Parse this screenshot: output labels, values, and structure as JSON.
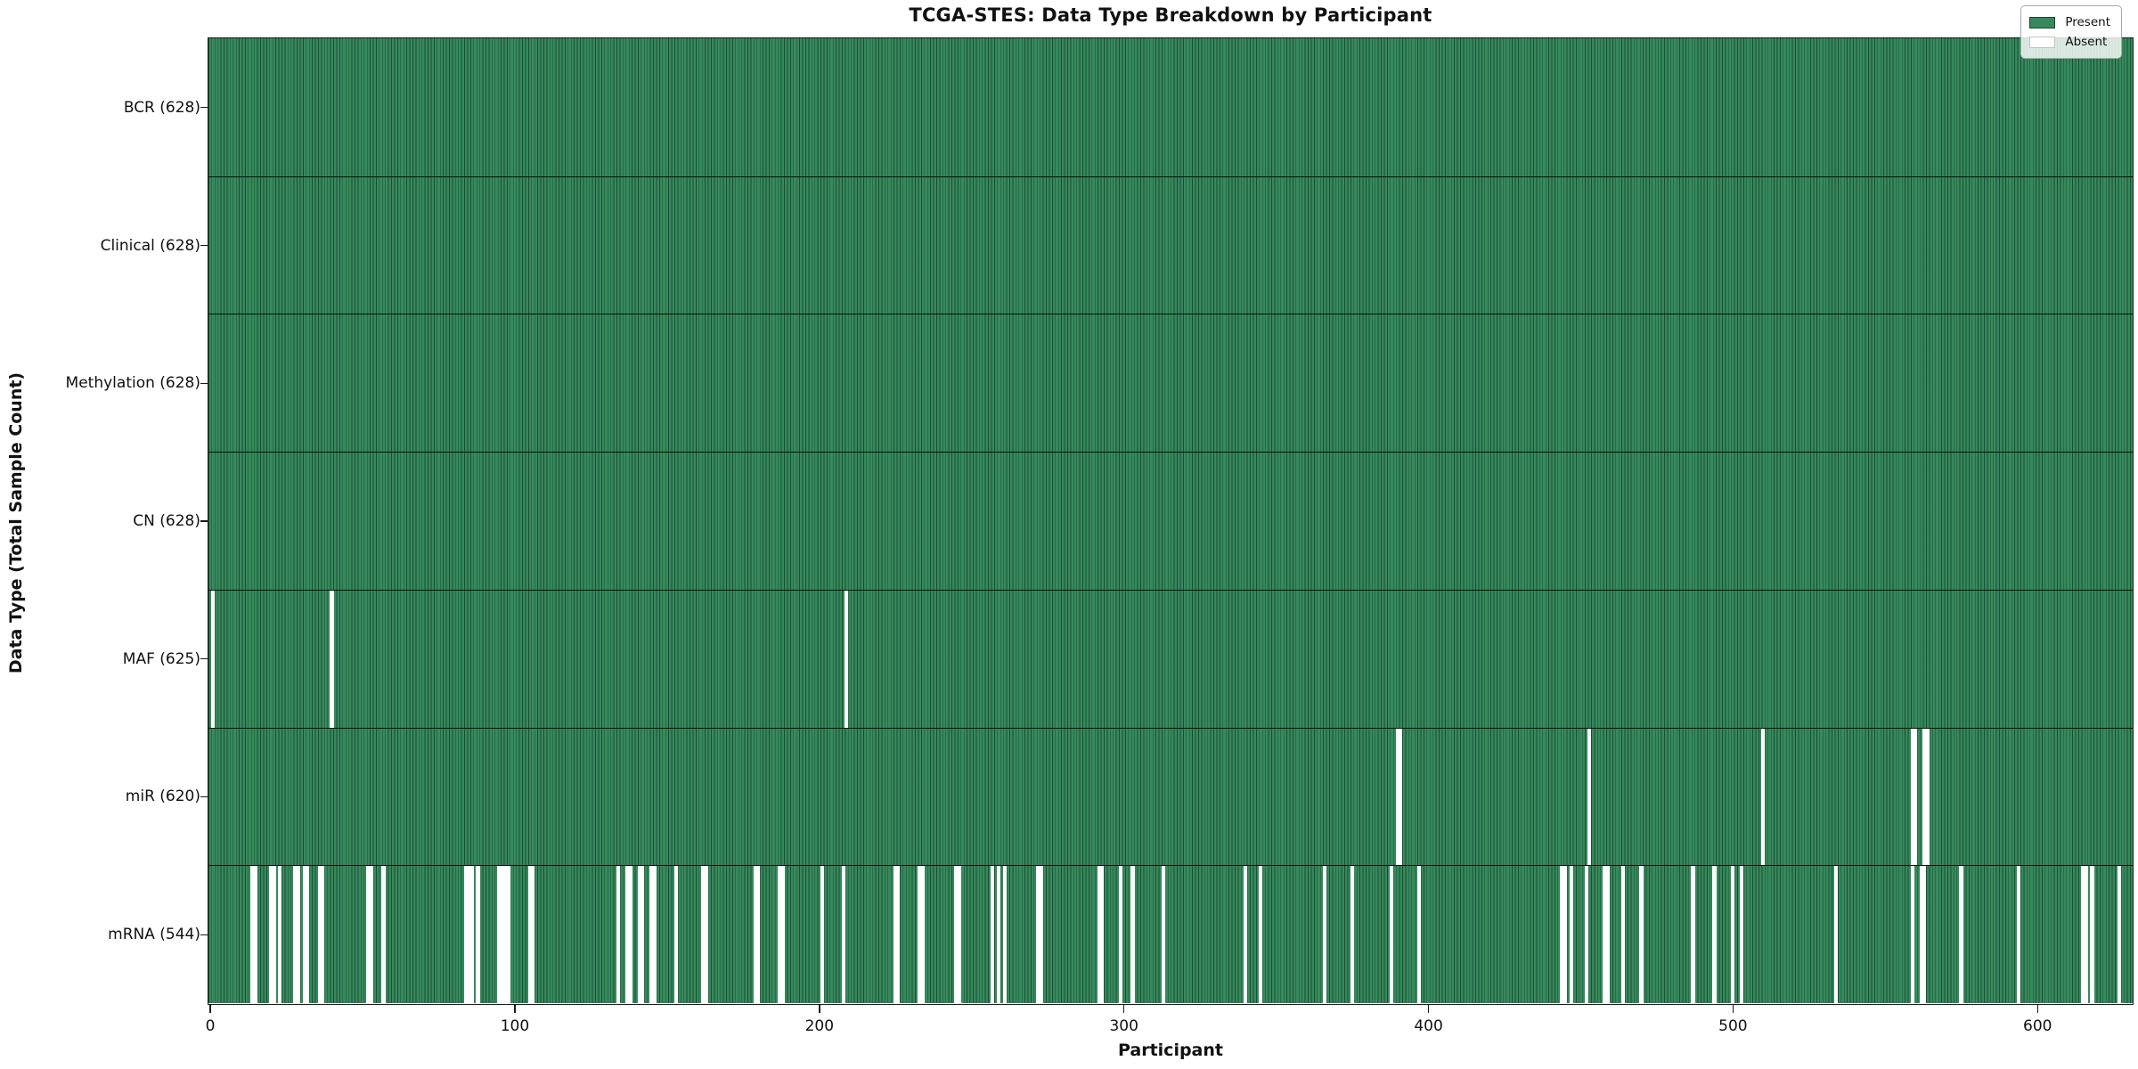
{
  "title": "TCGA-STES: Data Type Breakdown by Participant",
  "xlabel": "Participant",
  "ylabel": "Data Type (Total Sample Count)",
  "legend": {
    "present_label": "Present",
    "absent_label": "Absent"
  },
  "colors": {
    "present_fill": "#36895c",
    "present_edge": "rgba(10,42,26,0.62)",
    "absent_fill": "#ffffff",
    "row_divider": "rgba(0,0,0,0.85)",
    "spine": "#1a1a1a"
  },
  "chart_data": {
    "type": "heatmap",
    "subtype": "presence-absence-barcode",
    "title": "TCGA-STES: Data Type Breakdown by Participant",
    "xlabel": "Participant",
    "ylabel": "Data Type (Total Sample Count)",
    "legend_entries": [
      "Present",
      "Absent"
    ],
    "legend_position": "upper right",
    "grid": false,
    "n_participants": 628,
    "x_ticks": [
      0,
      100,
      200,
      300,
      400,
      500,
      600
    ],
    "x_axis_max": 631.6,
    "rows": [
      {
        "label": "BCR (628)",
        "name": "BCR",
        "present_count": 628,
        "absent_participants": []
      },
      {
        "label": "Clinical (628)",
        "name": "Clinical",
        "present_count": 628,
        "absent_participants": []
      },
      {
        "label": "Methylation (628)",
        "name": "Methylation",
        "present_count": 628,
        "absent_participants": []
      },
      {
        "label": "CN (628)",
        "name": "CN",
        "present_count": 628,
        "absent_participants": []
      },
      {
        "label": "MAF (625)",
        "name": "MAF",
        "present_count": 625,
        "absent_participants": [
          1,
          40,
          209
        ]
      },
      {
        "label": "miR (620)",
        "name": "miR",
        "present_count": 620,
        "absent_participants": [
          390,
          391,
          453,
          510,
          559,
          560,
          563,
          564
        ]
      },
      {
        "label": "mRNA (544)",
        "name": "mRNA",
        "present_count": 544,
        "absent_participants": [
          14,
          15,
          20,
          21,
          23,
          28,
          29,
          31,
          32,
          36,
          37,
          52,
          53,
          57,
          84,
          85,
          86,
          88,
          95,
          96,
          97,
          98,
          105,
          106,
          134,
          137,
          138,
          141,
          142,
          145,
          146,
          153,
          162,
          163,
          179,
          180,
          187,
          188,
          201,
          208,
          225,
          226,
          233,
          234,
          245,
          246,
          257,
          259,
          261,
          272,
          273,
          292,
          293,
          299,
          303,
          313,
          340,
          345,
          366,
          375,
          388,
          397,
          444,
          445,
          447,
          452,
          458,
          459,
          464,
          470,
          487,
          494,
          500,
          503,
          534,
          559,
          562,
          563,
          575,
          594,
          615,
          616,
          618,
          627
        ]
      }
    ]
  }
}
